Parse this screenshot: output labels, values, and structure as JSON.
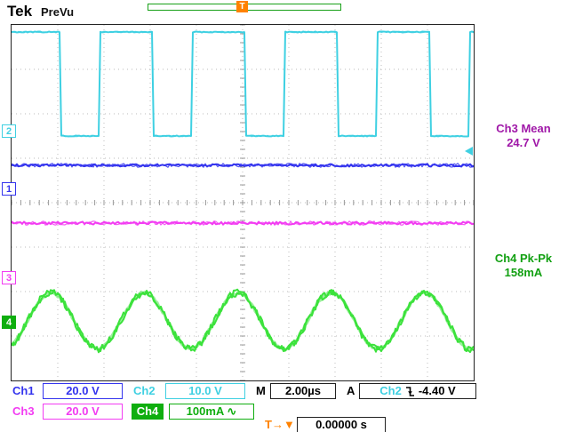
{
  "header": {
    "logo": "Tek",
    "status": "PreVu",
    "trigger_flag": "T"
  },
  "colors": {
    "ch1": "#3434ee",
    "ch2": "#3fd0e2",
    "ch3": "#f23cf2",
    "ch4": "#3ce23c",
    "ch4_ui": "#0fae0f",
    "orange": "#ff8200",
    "meas_ch3": "#a018a8",
    "meas_ch4": "#12a012",
    "grid": "#bbbbbb",
    "tick": "#999999"
  },
  "measurements": {
    "m1": {
      "label": "Ch3 Mean",
      "value": "24.7 V"
    },
    "m2": {
      "label": "Ch4 Pk-Pk",
      "value": "158mA"
    }
  },
  "readouts": {
    "ch1": {
      "label": "Ch1",
      "value": "20.0 V"
    },
    "ch2": {
      "label": "Ch2",
      "value": "10.0 V"
    },
    "timebase": {
      "label": "M",
      "value": "2.00µs"
    },
    "trigger": {
      "label": "A",
      "source": "Ch2",
      "slope": "falling",
      "level": "-4.40 V"
    },
    "ch3": {
      "label": "Ch3",
      "value": "20.0 V"
    },
    "ch4": {
      "label": "Ch4",
      "value": "100mA ∿"
    },
    "delay": {
      "icon": "T→▼",
      "value": "0.00000 s"
    }
  },
  "channel_markers": [
    {
      "ch": "2",
      "y_div": 2.42,
      "filled": false,
      "color_key": "ch2"
    },
    {
      "ch": "1",
      "y_div": 3.72,
      "filled": false,
      "color_key": "ch1"
    },
    {
      "ch": "3",
      "y_div": 5.72,
      "filled": false,
      "color_key": "ch3"
    },
    {
      "ch": "4",
      "y_div": 6.72,
      "filled": true,
      "color_key": "ch4_ui"
    }
  ],
  "trigger_level_div": 2.86,
  "chart_data": {
    "type": "line",
    "subtype": "oscilloscope-traces",
    "x_divisions": 10,
    "y_divisions": 8,
    "timebase_per_div": "2.00µs",
    "series": [
      {
        "name": "Ch2",
        "kind": "square",
        "color_key": "ch2",
        "scale": "10.0 V/div",
        "high_div": 0.16,
        "low_div": 2.5,
        "period_div": 2.0,
        "first_fall_div": 1.05,
        "high_frac": 0.58,
        "noise": 1.0
      },
      {
        "name": "Ch1",
        "kind": "flat",
        "color_key": "ch1",
        "scale": "20.0 V/div",
        "level_div": 3.16,
        "noise": 1.5
      },
      {
        "name": "Ch3",
        "kind": "flat",
        "color_key": "ch3",
        "scale": "20.0 V/div",
        "level_div": 4.46,
        "noise": 1.6
      },
      {
        "name": "Ch4",
        "kind": "sine",
        "color_key": "ch4",
        "scale": "100mA/div",
        "center_div": 6.66,
        "amplitude_div": 0.63,
        "period_div": 2.02,
        "peak_at_div": 0.85,
        "noise": 2.5
      }
    ]
  }
}
